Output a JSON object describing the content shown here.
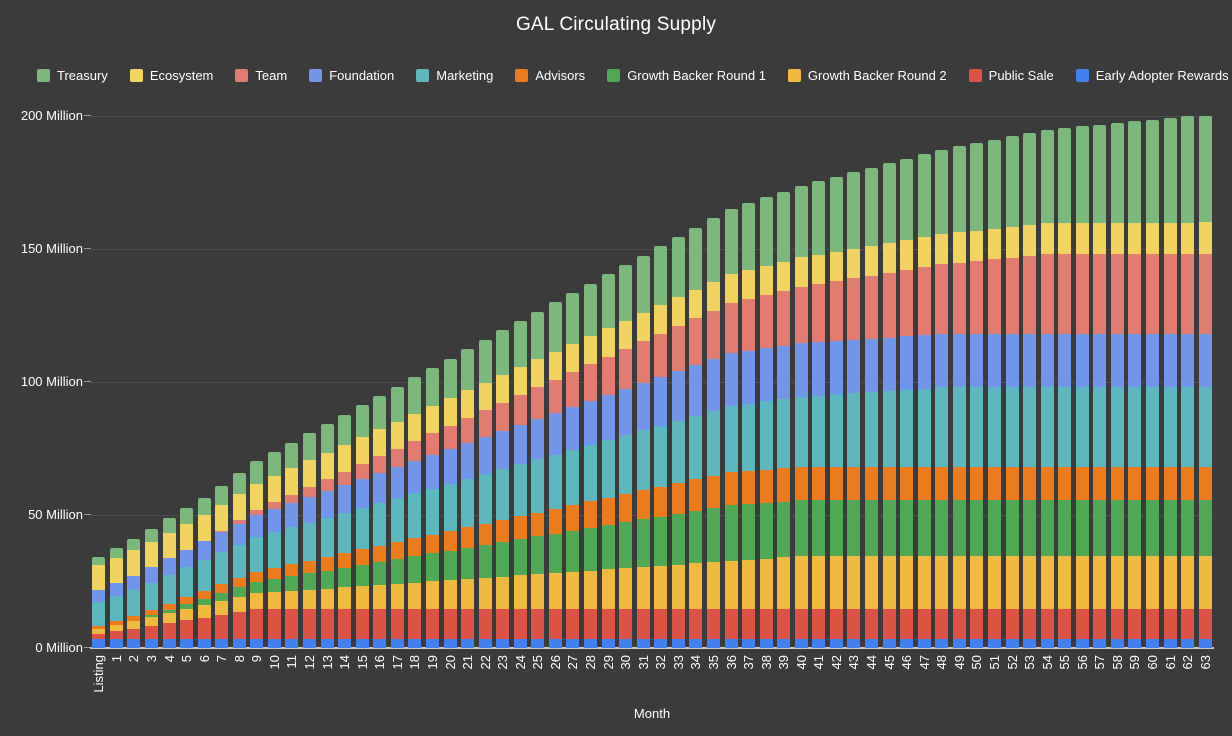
{
  "title": "GAL Circulating Supply",
  "colors": {
    "background": "#3b3b3b",
    "text": "#ffffff",
    "gridline": "#4e4e4e",
    "axis_baseline": "#c9c9c9"
  },
  "x_axis_title": "Month",
  "chart_data": {
    "type": "bar",
    "stacked": true,
    "title": "GAL Circulating Supply",
    "xlabel": "Month",
    "ylabel": "",
    "units": "Million GAL",
    "ylim": [
      0,
      200
    ],
    "grid": true,
    "legend_position": "top",
    "y_ticks": [
      "0 Million",
      "50 Million",
      "100 Million",
      "150 Million",
      "200 Million"
    ],
    "stack_order_bottom_to_top": [
      "Early Adopter Rewards",
      "Public Sale",
      "Growth Backer Round 2",
      "Growth Backer Round 1",
      "Advisors",
      "Marketing",
      "Foundation",
      "Team",
      "Ecosystem",
      "Treasury"
    ],
    "categories": [
      "Listing",
      "1",
      "2",
      "3",
      "4",
      "5",
      "6",
      "7",
      "8",
      "9",
      "10",
      "11",
      "12",
      "13",
      "14",
      "15",
      "16",
      "17",
      "18",
      "19",
      "20",
      "21",
      "22",
      "23",
      "24",
      "25",
      "26",
      "27",
      "28",
      "29",
      "30",
      "31",
      "32",
      "33",
      "34",
      "35",
      "36",
      "37",
      "38",
      "39",
      "40",
      "41",
      "42",
      "43",
      "44",
      "45",
      "46",
      "47",
      "48",
      "49",
      "50",
      "51",
      "52",
      "53",
      "54",
      "55",
      "56",
      "57",
      "58",
      "59",
      "60",
      "61",
      "62",
      "63"
    ],
    "series": [
      {
        "name": "Treasury",
        "color": "#7ab87b",
        "values": [
          3,
          3.6,
          4.19,
          4.79,
          5.39,
          5.98,
          6.58,
          7.18,
          7.77,
          8.37,
          8.97,
          9.56,
          10.16,
          10.76,
          11.36,
          11.95,
          12.55,
          13.15,
          13.74,
          14.34,
          14.94,
          15.53,
          16.13,
          16.73,
          17.32,
          17.92,
          18.52,
          19.11,
          19.71,
          20.31,
          20.9,
          21.5,
          22.1,
          22.7,
          23.29,
          23.89,
          24.49,
          25.08,
          25.68,
          26.28,
          26.87,
          27.47,
          28.07,
          28.66,
          29.26,
          29.86,
          30.45,
          31.05,
          31.65,
          32.25,
          32.84,
          33.44,
          34.04,
          34.63,
          35.23,
          35.83,
          36.42,
          37.02,
          37.62,
          38.21,
          38.81,
          39.41,
          40,
          40
        ]
      },
      {
        "name": "Ecosystem",
        "color": "#f3d35f",
        "values": [
          9.5,
          9.54,
          9.58,
          9.62,
          9.66,
          9.7,
          9.74,
          9.78,
          9.82,
          9.86,
          9.9,
          9.94,
          9.98,
          10.02,
          10.06,
          10.1,
          10.14,
          10.17,
          10.21,
          10.25,
          10.29,
          10.33,
          10.37,
          10.41,
          10.45,
          10.49,
          10.53,
          10.57,
          10.61,
          10.65,
          10.69,
          10.73,
          10.77,
          10.81,
          10.85,
          10.89,
          10.93,
          10.97,
          11.01,
          11.05,
          11.09,
          11.13,
          11.17,
          11.21,
          11.25,
          11.29,
          11.33,
          11.37,
          11.41,
          11.45,
          11.48,
          11.52,
          11.56,
          11.6,
          11.64,
          11.68,
          11.72,
          11.76,
          11.8,
          11.84,
          11.88,
          11.92,
          11.96,
          12
        ]
      },
      {
        "name": "Team",
        "color": "#e27b70",
        "values": [
          0,
          0,
          0,
          0,
          0,
          0,
          0,
          0.63,
          1.25,
          1.88,
          2.5,
          3.13,
          3.75,
          4.38,
          5,
          5.63,
          6.25,
          6.88,
          7.5,
          8.13,
          8.75,
          9.38,
          10,
          10.63,
          11.25,
          11.88,
          12.5,
          13.13,
          13.75,
          14.38,
          15,
          15.63,
          16.25,
          16.88,
          17.5,
          18.13,
          18.75,
          19.38,
          20,
          20.63,
          21.25,
          21.88,
          22.5,
          23.13,
          23.75,
          24.38,
          25,
          25.63,
          26.25,
          26.88,
          27.5,
          28.13,
          28.75,
          29.38,
          30,
          30,
          30,
          30,
          30,
          30,
          30,
          30,
          30,
          30
        ]
      },
      {
        "name": "Foundation",
        "color": "#7195e8",
        "values": [
          4.5,
          4.93,
          5.36,
          5.79,
          6.22,
          6.65,
          7.08,
          7.51,
          7.94,
          8.38,
          8.81,
          9.24,
          9.67,
          10.1,
          10.53,
          10.96,
          11.39,
          11.82,
          12.25,
          12.68,
          13.11,
          13.54,
          13.97,
          14.4,
          14.83,
          15.27,
          15.7,
          16.13,
          16.56,
          16.99,
          17.42,
          17.85,
          18.28,
          18.71,
          19.14,
          19.57,
          20,
          20,
          20,
          20,
          20,
          20,
          20,
          20,
          20,
          20,
          20,
          20,
          20,
          20,
          20,
          20,
          20,
          20,
          20,
          20,
          20,
          20,
          20,
          20,
          20,
          20,
          20,
          20
        ]
      },
      {
        "name": "Marketing",
        "color": "#5cb7bf",
        "values": [
          9,
          9.44,
          9.88,
          10.31,
          10.75,
          11.19,
          11.63,
          12.06,
          12.5,
          12.94,
          13.38,
          13.81,
          14.25,
          14.69,
          15.13,
          15.56,
          16,
          16.44,
          16.88,
          17.31,
          17.75,
          18.19,
          18.63,
          19.06,
          19.5,
          19.94,
          20.38,
          20.81,
          21.25,
          21.69,
          22.13,
          22.56,
          23,
          23.44,
          23.88,
          24.31,
          24.75,
          25.19,
          25.63,
          26.06,
          26.5,
          26.94,
          27.38,
          27.81,
          28.25,
          28.69,
          29.13,
          29.56,
          30,
          30,
          30,
          30,
          30,
          30,
          30,
          30,
          30,
          30,
          30,
          30,
          30,
          30,
          30,
          30
        ]
      },
      {
        "name": "Advisors",
        "color": "#ec7b1c",
        "values": [
          1,
          1.32,
          1.64,
          1.96,
          2.28,
          2.6,
          2.92,
          3.24,
          3.56,
          3.87,
          4.19,
          4.51,
          4.83,
          5.15,
          5.47,
          5.79,
          6.11,
          6.43,
          6.75,
          7.07,
          7.39,
          7.71,
          8.03,
          8.35,
          8.67,
          8.99,
          9.3,
          9.62,
          9.94,
          10.26,
          10.58,
          10.9,
          11.22,
          11.54,
          11.86,
          12.18,
          12.5,
          12.5,
          12.5,
          12.5,
          12.5,
          12.5,
          12.5,
          12.5,
          12.5,
          12.5,
          12.5,
          12.5,
          12.5,
          12.5,
          12.5,
          12.5,
          12.5,
          12.5,
          12.5,
          12.5,
          12.5,
          12.5,
          12.5,
          12.5,
          12.5,
          12.5,
          12.5,
          12.5
        ]
      },
      {
        "name": "Growth Backer Round 1",
        "color": "#4fa854",
        "values": [
          0,
          0,
          0,
          0.62,
          1.24,
          1.85,
          2.47,
          3.09,
          3.71,
          4.32,
          4.94,
          5.56,
          6.18,
          6.79,
          7.41,
          8.03,
          8.65,
          9.26,
          9.88,
          10.5,
          11.12,
          11.74,
          12.35,
          12.97,
          13.59,
          14.21,
          14.82,
          15.44,
          16.06,
          16.68,
          17.29,
          17.91,
          18.53,
          19.15,
          19.76,
          20.38,
          21,
          21,
          21,
          21,
          21,
          21,
          21,
          21,
          21,
          21,
          21,
          21,
          21,
          21,
          21,
          21,
          21,
          21,
          21,
          21,
          21,
          21,
          21,
          21,
          21,
          21,
          21,
          21
        ]
      },
      {
        "name": "Growth Backer Round 2",
        "color": "#f0ba3e",
        "values": [
          2,
          2.45,
          2.9,
          3.35,
          3.8,
          4.25,
          4.7,
          5.15,
          5.6,
          6.05,
          6.5,
          6.95,
          7.4,
          7.85,
          8.3,
          8.75,
          9.2,
          9.65,
          10.1,
          10.55,
          11,
          11.45,
          11.9,
          12.35,
          12.8,
          13.25,
          13.7,
          14.15,
          14.6,
          15.05,
          15.5,
          15.95,
          16.4,
          16.85,
          17.3,
          17.75,
          18.2,
          18.65,
          19.1,
          19.55,
          20,
          20,
          20,
          20,
          20,
          20,
          20,
          20,
          20,
          20,
          20,
          20,
          20,
          20,
          20,
          20,
          20,
          20,
          20,
          20,
          20,
          20,
          20,
          20
        ]
      },
      {
        "name": "Public Sale",
        "color": "#dc5244",
        "values": [
          1.8,
          2.82,
          3.84,
          4.87,
          5.89,
          6.91,
          7.93,
          8.96,
          9.98,
          11,
          11,
          11,
          11,
          11,
          11,
          11,
          11,
          11,
          11,
          11,
          11,
          11,
          11,
          11,
          11,
          11,
          11,
          11,
          11,
          11,
          11,
          11,
          11,
          11,
          11,
          11,
          11,
          11,
          11,
          11,
          11,
          11,
          11,
          11,
          11,
          11,
          11,
          11,
          11,
          11,
          11,
          11,
          11,
          11,
          11,
          11,
          11,
          11,
          11,
          11,
          11,
          11,
          11,
          11
        ]
      },
      {
        "name": "Early Adopter Rewards",
        "color": "#4280ee",
        "values": [
          3.5,
          3.5,
          3.5,
          3.5,
          3.5,
          3.5,
          3.5,
          3.5,
          3.5,
          3.5,
          3.5,
          3.5,
          3.5,
          3.5,
          3.5,
          3.5,
          3.5,
          3.5,
          3.5,
          3.5,
          3.5,
          3.5,
          3.5,
          3.5,
          3.5,
          3.5,
          3.5,
          3.5,
          3.5,
          3.5,
          3.5,
          3.5,
          3.5,
          3.5,
          3.5,
          3.5,
          3.5,
          3.5,
          3.5,
          3.5,
          3.5,
          3.5,
          3.5,
          3.5,
          3.5,
          3.5,
          3.5,
          3.5,
          3.5,
          3.5,
          3.5,
          3.5,
          3.5,
          3.5,
          3.5,
          3.5,
          3.5,
          3.5,
          3.5,
          3.5,
          3.5,
          3.5,
          3.5,
          3.5
        ]
      }
    ]
  }
}
